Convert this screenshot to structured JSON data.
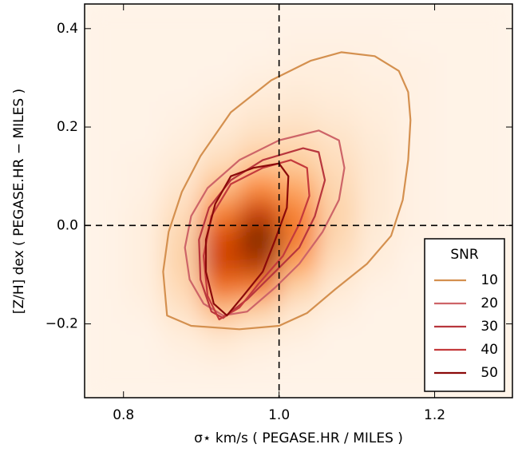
{
  "chart_data": {
    "type": "contour",
    "xlabel": "σ⋆ km/s ( PEGASE.HR / MILES )",
    "ylabel": "[Z/H] dex ( PEGASE.HR − MILES )",
    "xlim": [
      0.75,
      1.3
    ],
    "ylim": [
      -0.35,
      0.45
    ],
    "xticks": [
      0.8,
      {
        "value": 1.0,
        "label": "1.0"
      },
      {
        "value": 1.2,
        "label": "1.2"
      }
    ],
    "yticks": [
      {
        "value": -0.2,
        "label": "−0.2"
      },
      {
        "value": 0.0,
        "label": "0.0"
      },
      0.2,
      0.4
    ],
    "hlines": [
      0.0
    ],
    "vlines": [
      1.0
    ],
    "legend_title": "SNR",
    "legend_loc": "lower right",
    "heatmap": {
      "x_bins": [
        0.75,
        0.8,
        0.85,
        0.9,
        0.95,
        1.0,
        1.05,
        1.1,
        1.15,
        1.2,
        1.25,
        1.3
      ],
      "y_bins": [
        0.45,
        0.4,
        0.35,
        0.3,
        0.25,
        0.2,
        0.15,
        0.1,
        0.05,
        0.0,
        -0.05,
        -0.1,
        -0.15,
        -0.2,
        -0.25,
        -0.3,
        -0.35
      ],
      "values": [
        [
          1,
          1,
          1,
          1,
          1,
          1,
          1,
          1,
          1,
          1,
          1
        ],
        [
          1,
          1,
          1,
          1,
          1,
          2,
          2,
          2,
          1,
          1,
          1
        ],
        [
          1,
          1,
          1,
          1,
          2,
          3,
          3,
          2,
          2,
          1,
          1
        ],
        [
          1,
          1,
          1,
          2,
          4,
          5,
          4,
          3,
          2,
          1,
          1
        ],
        [
          1,
          1,
          2,
          4,
          7,
          8,
          6,
          4,
          2,
          1,
          1
        ],
        [
          1,
          1,
          3,
          7,
          12,
          13,
          9,
          5,
          2,
          1,
          1
        ],
        [
          1,
          2,
          5,
          13,
          22,
          20,
          12,
          6,
          2,
          1,
          1
        ],
        [
          1,
          2,
          8,
          24,
          38,
          30,
          15,
          6,
          2,
          1,
          1
        ],
        [
          1,
          3,
          12,
          40,
          60,
          40,
          17,
          6,
          2,
          1,
          1
        ],
        [
          1,
          3,
          16,
          55,
          75,
          42,
          15,
          5,
          2,
          1,
          1
        ],
        [
          1,
          3,
          17,
          58,
          65,
          32,
          11,
          4,
          1,
          1,
          1
        ],
        [
          1,
          3,
          14,
          45,
          42,
          18,
          6,
          2,
          1,
          1,
          1
        ],
        [
          1,
          2,
          9,
          24,
          18,
          7,
          3,
          1,
          1,
          1,
          1
        ],
        [
          1,
          1,
          4,
          8,
          5,
          3,
          1,
          1,
          1,
          1,
          1
        ],
        [
          1,
          1,
          2,
          3,
          2,
          1,
          1,
          1,
          1,
          1,
          1
        ],
        [
          1,
          1,
          1,
          1,
          1,
          1,
          1,
          1,
          1,
          1,
          1
        ]
      ]
    },
    "series": [
      {
        "name": "10",
        "color": "#d4904f",
        "x": [
          1.08,
          1.123,
          1.154,
          1.166,
          1.169,
          1.166,
          1.159,
          1.144,
          1.113,
          1.072,
          1.036,
          1.0,
          0.949,
          0.887,
          0.856,
          0.851,
          0.858,
          0.875,
          0.899,
          0.938,
          0.99,
          1.041
        ],
        "y": [
          0.352,
          0.344,
          0.314,
          0.271,
          0.214,
          0.133,
          0.052,
          -0.021,
          -0.078,
          -0.13,
          -0.178,
          -0.204,
          -0.211,
          -0.204,
          -0.183,
          -0.094,
          -0.013,
          0.068,
          0.141,
          0.23,
          0.295,
          0.335
        ]
      },
      {
        "name": "20",
        "color": "#cd6468",
        "x": [
          1.051,
          1.077,
          1.084,
          1.077,
          1.056,
          1.026,
          0.995,
          0.959,
          0.928,
          0.903,
          0.885,
          0.879,
          0.887,
          0.908,
          0.949,
          1.0
        ],
        "y": [
          0.193,
          0.173,
          0.117,
          0.052,
          -0.013,
          -0.078,
          -0.126,
          -0.175,
          -0.183,
          -0.159,
          -0.11,
          -0.045,
          0.019,
          0.076,
          0.133,
          0.173
        ]
      },
      {
        "name": "30",
        "color": "#b8363d",
        "x": [
          1.031,
          1.051,
          1.059,
          1.046,
          1.026,
          0.995,
          0.959,
          0.928,
          0.913,
          0.899,
          0.897,
          0.91,
          0.938,
          0.979
        ],
        "y": [
          0.157,
          0.149,
          0.092,
          0.019,
          -0.045,
          -0.094,
          -0.15,
          -0.188,
          -0.175,
          -0.11,
          -0.029,
          0.036,
          0.092,
          0.133
        ]
      },
      {
        "name": "40",
        "color": "#c43a3c",
        "x": [
          1.015,
          1.036,
          1.039,
          1.026,
          1.005,
          0.974,
          0.949,
          0.923,
          0.908,
          0.903,
          0.913,
          0.938,
          0.979
        ],
        "y": [
          0.133,
          0.117,
          0.06,
          0.003,
          -0.062,
          -0.118,
          -0.167,
          -0.191,
          -0.143,
          -0.062,
          0.019,
          0.084,
          0.117
        ]
      },
      {
        "name": "50",
        "color": "#8b0a0a",
        "x": [
          1.0,
          1.012,
          1.01,
          0.995,
          0.979,
          0.954,
          0.933,
          0.916,
          0.906,
          0.906,
          0.918,
          0.938,
          0.967
        ],
        "y": [
          0.126,
          0.1,
          0.036,
          -0.029,
          -0.094,
          -0.143,
          -0.183,
          -0.159,
          -0.094,
          -0.029,
          0.044,
          0.1,
          0.117
        ]
      }
    ]
  }
}
